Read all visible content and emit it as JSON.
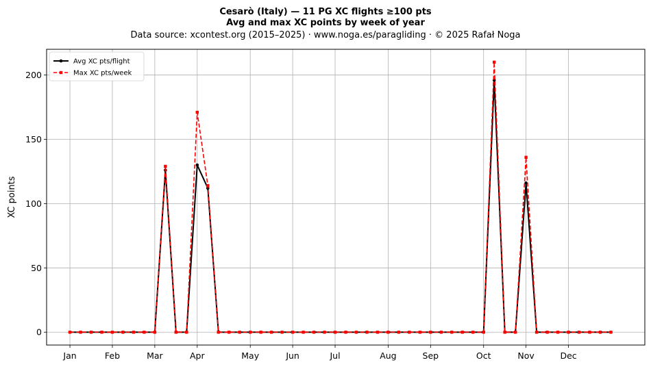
{
  "chart_data": {
    "type": "line",
    "title": "Cesarò (Italy)  —  11 PG XC flights ≥100 pts",
    "subtitle": "Avg and max XC points by week of year",
    "source": "Data source: xcontest.org (2015–2025)  ·  www.noga.es/paragliding  ·  © 2025 Rafał Noga",
    "xlabel": "",
    "ylabel": "XC points",
    "ylim": [
      -10,
      220
    ],
    "xlim": [
      -2.2,
      54.2
    ],
    "yticks": [
      0,
      50,
      100,
      150,
      200
    ],
    "month_ticks": [
      {
        "label": "Jan",
        "week": 0
      },
      {
        "label": "Feb",
        "week": 4
      },
      {
        "label": "Mar",
        "week": 8
      },
      {
        "label": "Apr",
        "week": 12
      },
      {
        "label": "May",
        "week": 17
      },
      {
        "label": "Jun",
        "week": 21
      },
      {
        "label": "Jul",
        "week": 25
      },
      {
        "label": "Aug",
        "week": 30
      },
      {
        "label": "Sep",
        "week": 34
      },
      {
        "label": "Oct",
        "week": 39
      },
      {
        "label": "Nov",
        "week": 43
      },
      {
        "label": "Dec",
        "week": 47
      }
    ],
    "grid": true,
    "legend_position": "top-left",
    "x": [
      0,
      1,
      2,
      3,
      4,
      5,
      6,
      7,
      8,
      9,
      10,
      11,
      12,
      13,
      14,
      15,
      16,
      17,
      18,
      19,
      20,
      21,
      22,
      23,
      24,
      25,
      26,
      27,
      28,
      29,
      30,
      31,
      32,
      33,
      34,
      35,
      36,
      37,
      38,
      39,
      40,
      41,
      42,
      43,
      44,
      45,
      46,
      47,
      48,
      49,
      50,
      51
    ],
    "series": [
      {
        "name": "Avg XC pts/flight",
        "color": "#000000",
        "style": "solid",
        "marker": "circle",
        "values": [
          0,
          0,
          0,
          0,
          0,
          0,
          0,
          0,
          0,
          126,
          0,
          0,
          130,
          112,
          0,
          0,
          0,
          0,
          0,
          0,
          0,
          0,
          0,
          0,
          0,
          0,
          0,
          0,
          0,
          0,
          0,
          0,
          0,
          0,
          0,
          0,
          0,
          0,
          0,
          0,
          196,
          0,
          0,
          116,
          0,
          0,
          0,
          0,
          0,
          0,
          0,
          0
        ]
      },
      {
        "name": "Max XC pts/week",
        "color": "#ff0000",
        "style": "dashed",
        "marker": "square",
        "values": [
          0,
          0,
          0,
          0,
          0,
          0,
          0,
          0,
          0,
          129,
          0,
          0,
          171,
          114,
          0,
          0,
          0,
          0,
          0,
          0,
          0,
          0,
          0,
          0,
          0,
          0,
          0,
          0,
          0,
          0,
          0,
          0,
          0,
          0,
          0,
          0,
          0,
          0,
          0,
          0,
          210,
          0,
          0,
          136,
          0,
          0,
          0,
          0,
          0,
          0,
          0,
          0
        ]
      }
    ]
  }
}
